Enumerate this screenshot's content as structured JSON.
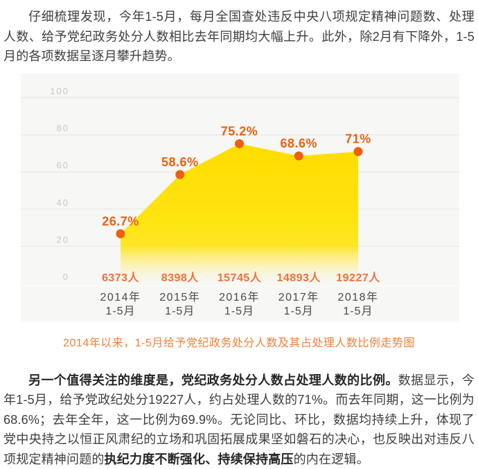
{
  "intro_paragraph": "仔细梳理发现，今年1-5月，每月全国查处违反中央八项规定精神问题数、处理人数、给予党纪政务处分人数相比去年同期均大幅上升。此外，除2月有下降外，1-5月的各项数据呈逐月攀升趋势。",
  "chart_caption": "2014年以来，1-5月给予党纪政务处分人数及其占处理人数比例走势图",
  "analysis_paragraph": {
    "bold_lead": "另一个值得关注的维度是，党纪政务处分人数占处理人数的比例。",
    "text_mid": "数据显示，今年1-5月，给予党政纪处分19227人，约占处理人数的71%。而去年同期，这一比例为68.6%；去年全年，这一比例为69.9%。无论同比、环比，数据均持续上升，体现了党中央持之以恒正风肃纪的立场和巩固拓展成果坚如磐石的决心，也反映出对违反八项规定精神问题的",
    "bold_emphasis": "执纪力度不断强化、持续保持高压",
    "text_end": "的内在逻辑。"
  },
  "chart_data": {
    "type": "area",
    "title": "2014年以来，1-5月给予党纪政务处分人数及其占处理人数比例走势图",
    "categories": [
      {
        "year": "2014年",
        "period": "1-5月"
      },
      {
        "year": "2015年",
        "period": "1-5月"
      },
      {
        "year": "2016年",
        "period": "1-5月"
      },
      {
        "year": "2017年",
        "period": "1-5月"
      },
      {
        "year": "2018年",
        "period": "1-5月"
      }
    ],
    "series": [
      {
        "name": "占处理人数比例",
        "unit": "%",
        "values": [
          26.7,
          58.6,
          75.2,
          68.6,
          71
        ],
        "labels": [
          "26.7%",
          "58.6%",
          "75.2%",
          "68.6%",
          "71%"
        ]
      },
      {
        "name": "给予党纪政务处分人数",
        "unit": "人",
        "values": [
          6373,
          8398,
          15745,
          14893,
          19227
        ],
        "labels": [
          "6373人",
          "8398人",
          "15745人",
          "14893人",
          "19227人"
        ]
      }
    ],
    "ylim": [
      0,
      100
    ],
    "yticks": [
      0,
      20,
      40,
      60,
      80,
      100
    ],
    "grid": true,
    "legend": "none",
    "colors": {
      "area_top": "#FFDC00",
      "area_mid": "#FFE410",
      "area_fade": "#FFF4B0",
      "dot": "#EE5F0C",
      "percent_label": "#EE5F0C",
      "count_label": "#F26F38",
      "axis_label": "#4A4A4A",
      "ytick_label": "#C6C6C6",
      "gridline": "#E3E3E3",
      "zero_line": "#FBFBFA",
      "plot_bg": "#F7F7F5",
      "caption": "#F57E38"
    }
  }
}
